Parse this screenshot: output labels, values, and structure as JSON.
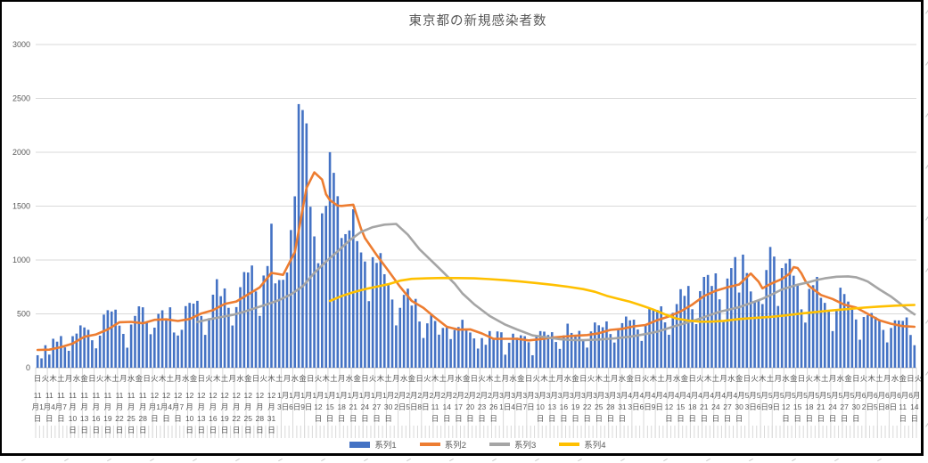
{
  "chart_data": {
    "type": "combo",
    "title": "東京都の新規感染者数",
    "x_day_count": 226,
    "x_start_label": "11月1日",
    "x_end_label": "6月14日",
    "grid": true,
    "legend_position": "bottom",
    "yaxis": {
      "min": 0,
      "max": 3000,
      "step": 500,
      "tick_labels": [
        "0",
        "500",
        "1000",
        "1500",
        "2000",
        "2500",
        "3000"
      ]
    },
    "xaxis": {
      "date_tick_interval_days": 3,
      "date_tick_labels": [
        "11月1日",
        "11月4日",
        "11月7日",
        "11月10日",
        "11月13日",
        "11月16日",
        "11月19日",
        "11月22日",
        "11月25日",
        "11月28日",
        "12月1日",
        "12月4日",
        "12月7日",
        "12月10日",
        "12月13日",
        "12月16日",
        "12月19日",
        "12月22日",
        "12月25日",
        "12月28日",
        "12月31日",
        "1月3日",
        "1月6日",
        "1月9日",
        "1月12日",
        "1月15日",
        "1月18日",
        "1月21日",
        "1月24日",
        "1月27日",
        "1月30日",
        "2月2日",
        "2月5日",
        "2月8日",
        "2月11日",
        "2月14日",
        "2月17日",
        "2月20日",
        "2月23日",
        "2月26日",
        "3月1日",
        "3月4日",
        "3月7日",
        "3月10日",
        "3月13日",
        "3月16日",
        "3月19日",
        "3月22日",
        "3月25日",
        "3月28日",
        "3月31日",
        "4月3日",
        "4月6日",
        "4月9日",
        "4月12日",
        "4月15日",
        "4月18日",
        "4月21日",
        "4月24日",
        "4月27日",
        "4月30日",
        "5月3日",
        "5月6日",
        "5月9日",
        "5月12日",
        "5月15日",
        "5月18日",
        "5月21日",
        "5月24日",
        "5月27日",
        "5月30日",
        "6月2日",
        "6月5日",
        "6月8日",
        "6月11日",
        "6月14日"
      ],
      "weekday_tick_interval_days": 2,
      "weekday_tick_cycle": [
        "日",
        "火",
        "木",
        "土",
        "月",
        "水",
        "金"
      ],
      "weekday_tick_count": 114
    },
    "series": [
      {
        "name": "系列1",
        "type": "bar",
        "color": "#4472C4",
        "values": [
          116,
          87,
          209,
          122,
          269,
          242,
          294,
          189,
          157,
          293,
          317,
          393,
          374,
          352,
          255,
          180,
          298,
          493,
          534,
          522,
          539,
          391,
          314,
          186,
          401,
          481,
          570,
          561,
          418,
          311,
          372,
          500,
          533,
          449,
          561,
          327,
          299,
          352,
          572,
          602,
          595,
          621,
          480,
          305,
          460,
          678,
          822,
          664,
          736,
          556,
          392,
          563,
          748,
          888,
          884,
          949,
          708,
          481,
          856,
          944,
          1337,
          783,
          814,
          816,
          884,
          1278,
          1591,
          2447,
          2392,
          2268,
          1494,
          1219,
          970,
          1433,
          1502,
          2001,
          1809,
          1592,
          1204,
          1240,
          1274,
          1471,
          1175,
          1070,
          986,
          618,
          1026,
          973,
          1064,
          868,
          769,
          633,
          393,
          556,
          676,
          734,
          577,
          639,
          429,
          276,
          412,
          491,
          434,
          307,
          369,
          371,
          266,
          350,
          378,
          445,
          353,
          327,
          272,
          178,
          275,
          213,
          340,
          270,
          337,
          329,
          121,
          232,
          316,
          279,
          301,
          293,
          237,
          116,
          290,
          340,
          335,
          304,
          330,
          239,
          175,
          300,
          409,
          323,
          303,
          342,
          256,
          187,
          337,
          420,
          394,
          376,
          430,
          313,
          234,
          364,
          414,
          475,
          440,
          446,
          355,
          249,
          399,
          555,
          545,
          537,
          570,
          421,
          306,
          510,
          591,
          729,
          667,
          759,
          543,
          405,
          711,
          843,
          861,
          759,
          876,
          635,
          425,
          828,
          925,
          1027,
          698,
          1050,
          879,
          708,
          609,
          621,
          591,
          907,
          1121,
          1032,
          573,
          925,
          969,
          1010,
          854,
          772,
          542,
          419,
          732,
          766,
          843,
          649,
          602,
          535,
          340,
          542,
          743,
          684,
          614,
          539,
          448,
          260,
          471,
          487,
          508,
          472,
          436,
          351,
          235,
          369,
          440,
          439,
          435,
          467,
          304,
          209
        ]
      },
      {
        "name": "系列2",
        "type": "line",
        "color": "#ED7D31",
        "points": [
          [
            0,
            165
          ],
          [
            3,
            168
          ],
          [
            6,
            191
          ],
          [
            9,
            224
          ],
          [
            12,
            288
          ],
          [
            15,
            309
          ],
          [
            18,
            355
          ],
          [
            21,
            422
          ],
          [
            24,
            426
          ],
          [
            27,
            412
          ],
          [
            30,
            445
          ],
          [
            33,
            449
          ],
          [
            36,
            434
          ],
          [
            39,
            452
          ],
          [
            42,
            503
          ],
          [
            45,
            534
          ],
          [
            48,
            592
          ],
          [
            51,
            615
          ],
          [
            54,
            681
          ],
          [
            57,
            746
          ],
          [
            60,
            880
          ],
          [
            63,
            862
          ],
          [
            66,
            1072
          ],
          [
            69,
            1668
          ],
          [
            71,
            1813
          ],
          [
            73,
            1746
          ],
          [
            74,
            1611
          ],
          [
            75,
            1555
          ],
          [
            77,
            1504
          ],
          [
            78,
            1502
          ],
          [
            81,
            1513
          ],
          [
            83,
            1289
          ],
          [
            84,
            1203
          ],
          [
            87,
            1046
          ],
          [
            90,
            901
          ],
          [
            93,
            751
          ],
          [
            96,
            620
          ],
          [
            99,
            555
          ],
          [
            102,
            465
          ],
          [
            105,
            380
          ],
          [
            108,
            354
          ],
          [
            111,
            356
          ],
          [
            114,
            318
          ],
          [
            117,
            268
          ],
          [
            120,
            269
          ],
          [
            123,
            269
          ],
          [
            126,
            254
          ],
          [
            129,
            265
          ],
          [
            132,
            279
          ],
          [
            135,
            289
          ],
          [
            138,
            297
          ],
          [
            141,
            303
          ],
          [
            144,
            320
          ],
          [
            147,
            351
          ],
          [
            150,
            361
          ],
          [
            153,
            384
          ],
          [
            156,
            397
          ],
          [
            159,
            441
          ],
          [
            162,
            476
          ],
          [
            165,
            523
          ],
          [
            168,
            586
          ],
          [
            171,
            665
          ],
          [
            174,
            714
          ],
          [
            177,
            747
          ],
          [
            180,
            773
          ],
          [
            183,
            874
          ],
          [
            185,
            799
          ],
          [
            186,
            737
          ],
          [
            188,
            777
          ],
          [
            191,
            824
          ],
          [
            193,
            874
          ],
          [
            194,
            934
          ],
          [
            195,
            926
          ],
          [
            196,
            876
          ],
          [
            197,
            806
          ],
          [
            198,
            757
          ],
          [
            201,
            675
          ],
          [
            204,
            638
          ],
          [
            207,
            585
          ],
          [
            210,
            559
          ],
          [
            213,
            500
          ],
          [
            216,
            440
          ],
          [
            219,
            408
          ],
          [
            222,
            386
          ],
          [
            225,
            380
          ]
        ]
      },
      {
        "name": "系列3",
        "type": "line",
        "color": "#A5A5A5",
        "points": [
          [
            41,
            425
          ],
          [
            44,
            450
          ],
          [
            47,
            470
          ],
          [
            50,
            490
          ],
          [
            53,
            520
          ],
          [
            56,
            555
          ],
          [
            59,
            590
          ],
          [
            62,
            628
          ],
          [
            65,
            680
          ],
          [
            68,
            755
          ],
          [
            71,
            880
          ],
          [
            74,
            985
          ],
          [
            77,
            1080
          ],
          [
            80,
            1180
          ],
          [
            83,
            1260
          ],
          [
            86,
            1305
          ],
          [
            89,
            1328
          ],
          [
            92,
            1335
          ],
          [
            95,
            1235
          ],
          [
            98,
            1100
          ],
          [
            100,
            1030
          ],
          [
            104,
            890
          ],
          [
            107,
            780
          ],
          [
            109,
            690
          ],
          [
            112,
            590
          ],
          [
            116,
            480
          ],
          [
            120,
            400
          ],
          [
            123,
            355
          ],
          [
            127,
            300
          ],
          [
            130,
            285
          ],
          [
            134,
            265
          ],
          [
            137,
            258
          ],
          [
            140,
            255
          ],
          [
            144,
            262
          ],
          [
            148,
            272
          ],
          [
            152,
            288
          ],
          [
            156,
            312
          ],
          [
            159,
            335
          ],
          [
            163,
            380
          ],
          [
            166,
            412
          ],
          [
            169,
            445
          ],
          [
            172,
            482
          ],
          [
            175,
            520
          ],
          [
            178,
            545
          ],
          [
            180,
            562
          ],
          [
            183,
            600
          ],
          [
            186,
            640
          ],
          [
            189,
            690
          ],
          [
            191,
            727
          ],
          [
            195,
            770
          ],
          [
            198,
            795
          ],
          [
            200,
            815
          ],
          [
            202,
            830
          ],
          [
            205,
            845
          ],
          [
            208,
            848
          ],
          [
            210,
            840
          ],
          [
            212,
            815
          ],
          [
            213,
            800
          ],
          [
            216,
            727
          ],
          [
            219,
            660
          ],
          [
            221,
            605
          ],
          [
            223,
            545
          ],
          [
            225,
            495
          ]
        ]
      },
      {
        "name": "系列4",
        "type": "line",
        "color": "#FFC000",
        "points": [
          [
            75,
            620
          ],
          [
            78,
            665
          ],
          [
            81,
            700
          ],
          [
            84,
            730
          ],
          [
            87,
            752
          ],
          [
            90,
            775
          ],
          [
            93,
            808
          ],
          [
            96,
            825
          ],
          [
            100,
            830
          ],
          [
            104,
            833
          ],
          [
            108,
            832
          ],
          [
            112,
            830
          ],
          [
            116,
            822
          ],
          [
            120,
            812
          ],
          [
            124,
            800
          ],
          [
            128,
            786
          ],
          [
            132,
            770
          ],
          [
            136,
            752
          ],
          [
            140,
            730
          ],
          [
            143,
            705
          ],
          [
            146,
            668
          ],
          [
            149,
            640
          ],
          [
            152,
            612
          ],
          [
            155,
            578
          ],
          [
            158,
            540
          ],
          [
            161,
            495
          ],
          [
            164,
            455
          ],
          [
            167,
            438
          ],
          [
            170,
            427
          ],
          [
            173,
            428
          ],
          [
            176,
            435
          ],
          [
            180,
            452
          ],
          [
            184,
            462
          ],
          [
            188,
            472
          ],
          [
            192,
            486
          ],
          [
            196,
            503
          ],
          [
            200,
            518
          ],
          [
            204,
            532
          ],
          [
            208,
            545
          ],
          [
            212,
            558
          ],
          [
            216,
            568
          ],
          [
            220,
            576
          ],
          [
            225,
            583
          ]
        ]
      }
    ]
  },
  "colors": {
    "grid": "#D9D9D9",
    "axis_line": "#BFBFBF",
    "text": "#595959",
    "chart_border": "#000000",
    "bar": "#4472C4",
    "line2": "#ED7D31",
    "line3": "#A5A5A5",
    "line4": "#FFC000"
  }
}
